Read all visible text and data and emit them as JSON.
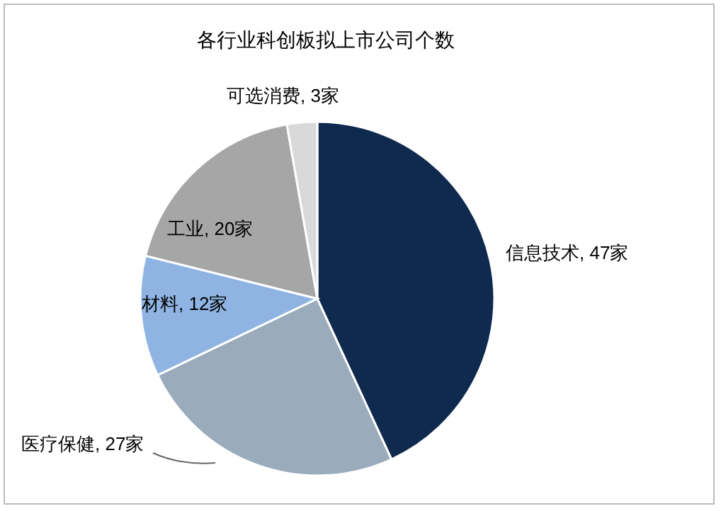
{
  "chart_data": {
    "type": "pie",
    "title": "各行业科创板拟上市公司个数",
    "categories": [
      "信息技术",
      "医疗保健",
      "材料",
      "工业",
      "可选消费"
    ],
    "values": [
      47,
      27,
      12,
      20,
      3
    ],
    "value_labels": [
      "47家",
      "27家",
      "12家",
      "20家",
      "3家"
    ],
    "colors": [
      "#0f2a4e",
      "#9aabbb",
      "#8fb4e3",
      "#a6a6a6",
      "#d9d9d9"
    ]
  }
}
